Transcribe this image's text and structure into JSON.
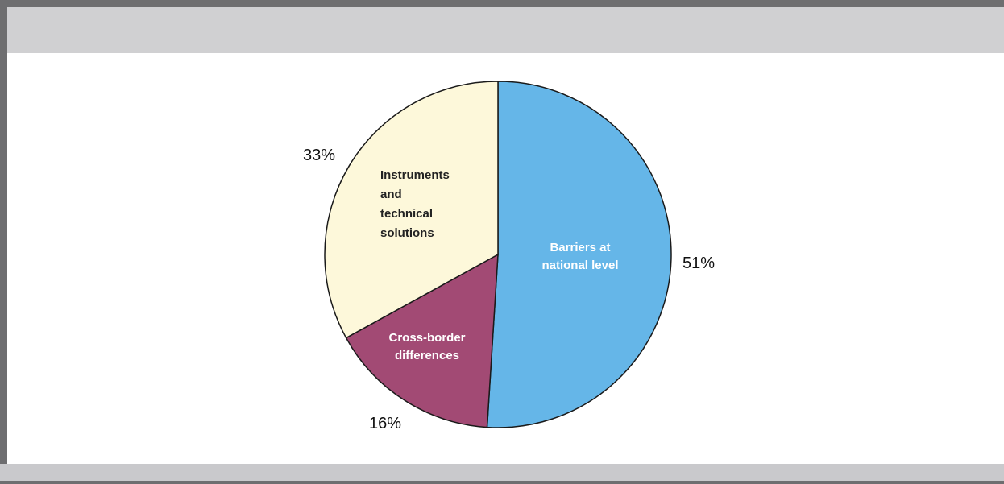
{
  "chart_data": {
    "type": "pie",
    "slices": [
      {
        "label": "Barriers at national level",
        "label_lines": [
          "Barriers at",
          "national level"
        ],
        "value": 51,
        "value_label": "51%",
        "color": "#65b6e8",
        "text_color": "#ffffff"
      },
      {
        "label": "Cross-border differences",
        "label_lines": [
          "Cross-border",
          "differences"
        ],
        "value": 16,
        "value_label": "16%",
        "color": "#a24a74",
        "text_color": "#ffffff"
      },
      {
        "label": "Instruments and technical solutions",
        "label_lines": [
          "Instruments",
          "and",
          "technical",
          "solutions"
        ],
        "value": 33,
        "value_label": "33%",
        "color": "#fdf8da",
        "text_color": "#222222"
      }
    ],
    "start_at": "top",
    "direction": "clockwise",
    "outline_color": "#1a1a1a"
  }
}
